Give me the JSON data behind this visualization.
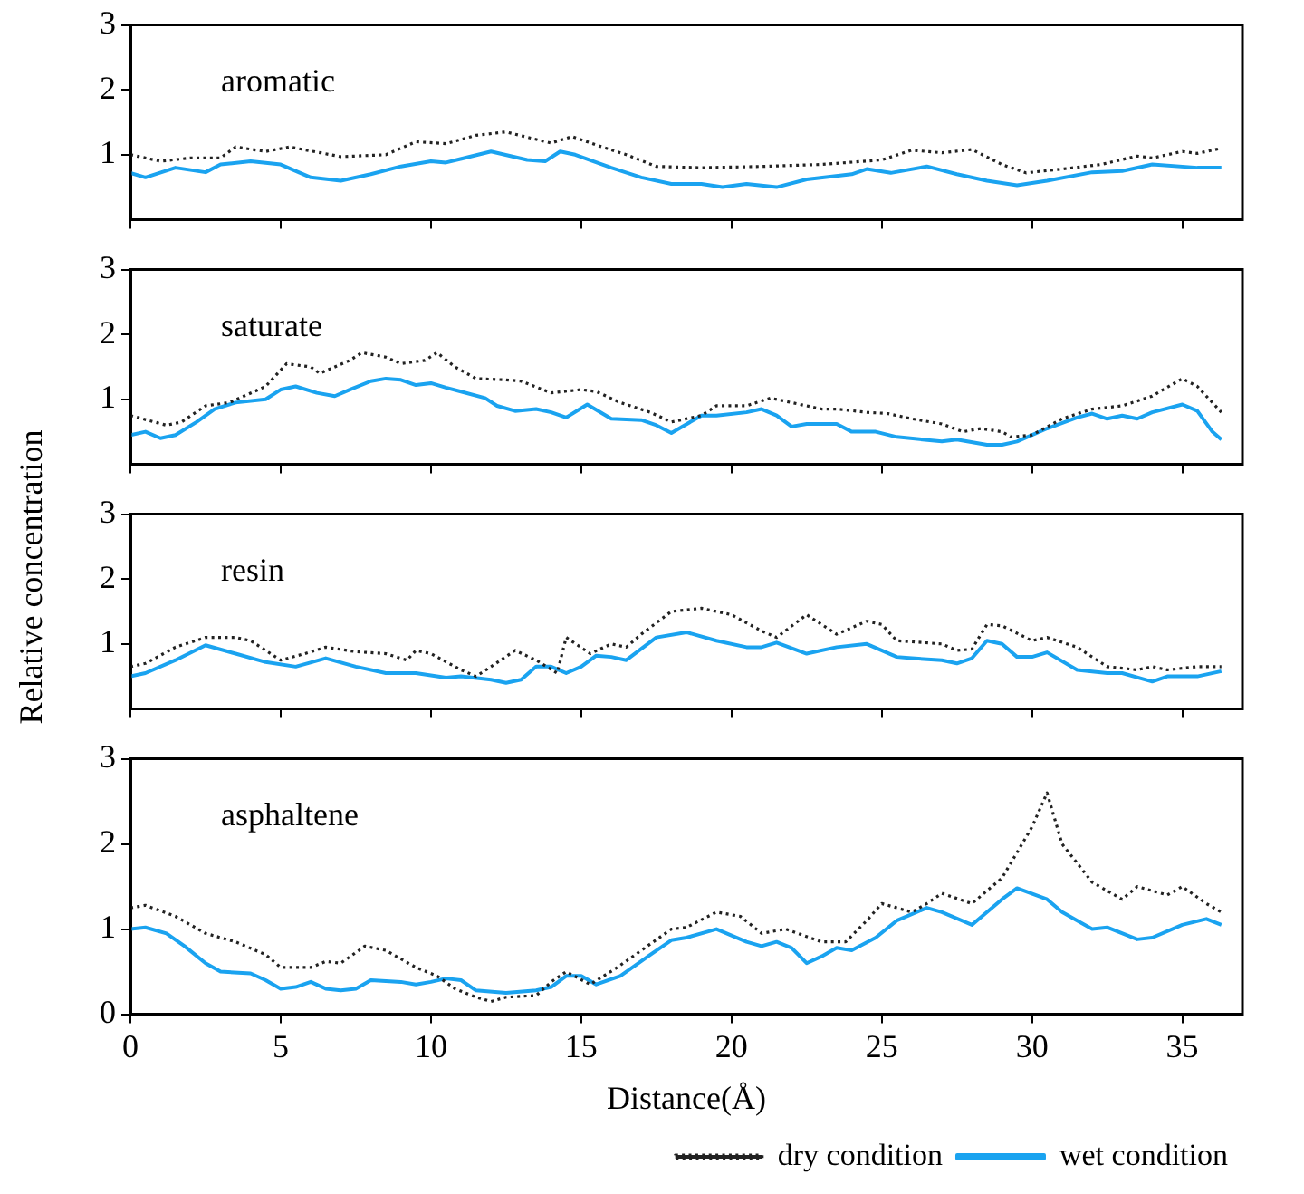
{
  "chart_data": [
    {
      "type": "line",
      "title": "aromatic",
      "xlim": [
        0,
        37
      ],
      "xticks": [
        0,
        5,
        10,
        15,
        20,
        25,
        30,
        35
      ],
      "ylim": [
        0,
        3
      ],
      "yticks": [
        1,
        2,
        3
      ],
      "tick_labels": "y",
      "legend": false,
      "marker": "none",
      "series": [
        {
          "color": "#222222",
          "line_style": "dotted",
          "x": [
            0,
            1,
            2,
            3,
            3.5,
            4.5,
            5.3,
            7,
            8.5,
            9.5,
            10.5,
            11.5,
            12.5,
            14,
            14.7,
            15.5,
            16.5,
            17.5,
            19,
            21,
            23,
            25,
            26,
            27,
            28,
            29,
            29.8,
            31,
            32.3,
            33.5,
            34,
            35,
            35.5,
            36.3
          ],
          "values": [
            1.0,
            0.9,
            0.95,
            0.95,
            1.12,
            1.05,
            1.12,
            0.97,
            1.0,
            1.2,
            1.17,
            1.3,
            1.35,
            1.18,
            1.28,
            1.15,
            1.0,
            0.82,
            0.8,
            0.82,
            0.85,
            0.92,
            1.07,
            1.03,
            1.08,
            0.85,
            0.72,
            0.78,
            0.85,
            0.98,
            0.95,
            1.05,
            1.02,
            1.1
          ]
        },
        {
          "color": "#1aa3f0",
          "line_style": "solid",
          "x": [
            0,
            0.5,
            1.5,
            2.5,
            3,
            4,
            5,
            6,
            7,
            8,
            9,
            10,
            10.5,
            12,
            13.2,
            13.8,
            14.3,
            14.8,
            16,
            17,
            18,
            19,
            19.7,
            20.5,
            21.5,
            22.5,
            24,
            24.5,
            25.3,
            26.5,
            27.5,
            28.5,
            29.5,
            30.5,
            32,
            33,
            34,
            35.5,
            36.3
          ],
          "values": [
            0.72,
            0.65,
            0.8,
            0.73,
            0.85,
            0.9,
            0.85,
            0.65,
            0.6,
            0.7,
            0.82,
            0.9,
            0.88,
            1.05,
            0.92,
            0.9,
            1.05,
            1.0,
            0.8,
            0.65,
            0.55,
            0.55,
            0.5,
            0.55,
            0.5,
            0.62,
            0.7,
            0.78,
            0.72,
            0.82,
            0.7,
            0.6,
            0.53,
            0.6,
            0.73,
            0.75,
            0.85,
            0.8,
            0.8
          ]
        }
      ]
    },
    {
      "type": "line",
      "title": "saturate",
      "xlim": [
        0,
        37
      ],
      "xticks": [
        0,
        5,
        10,
        15,
        20,
        25,
        30,
        35
      ],
      "ylim": [
        0,
        3
      ],
      "yticks": [
        1,
        2,
        3
      ],
      "tick_labels": "y",
      "legend": false,
      "marker": "none",
      "series": [
        {
          "color": "#222222",
          "line_style": "dotted",
          "x": [
            0,
            1.2,
            1.7,
            2.5,
            3.3,
            4.5,
            5.2,
            6,
            6.3,
            7.3,
            7.7,
            8.5,
            9,
            9.8,
            10.2,
            10.8,
            11.5,
            12.5,
            13,
            14,
            15,
            15.5,
            16.3,
            17.3,
            18,
            19,
            19.5,
            20.5,
            21.3,
            22,
            23,
            23.5,
            24.5,
            25.2,
            26,
            27,
            27.7,
            28.3,
            29,
            29.3,
            30,
            31,
            32,
            33,
            34,
            35,
            35.5,
            36.3
          ],
          "values": [
            0.75,
            0.6,
            0.65,
            0.9,
            0.95,
            1.2,
            1.55,
            1.5,
            1.4,
            1.6,
            1.72,
            1.65,
            1.55,
            1.6,
            1.72,
            1.5,
            1.32,
            1.3,
            1.28,
            1.1,
            1.15,
            1.12,
            0.95,
            0.8,
            0.65,
            0.75,
            0.9,
            0.9,
            1.02,
            0.95,
            0.85,
            0.85,
            0.8,
            0.78,
            0.7,
            0.62,
            0.5,
            0.55,
            0.5,
            0.42,
            0.45,
            0.7,
            0.85,
            0.9,
            1.05,
            1.32,
            1.2,
            0.8
          ]
        },
        {
          "color": "#1aa3f0",
          "line_style": "solid",
          "x": [
            0,
            0.5,
            1,
            1.5,
            2.2,
            2.8,
            3.5,
            4.5,
            5,
            5.5,
            6.2,
            6.8,
            7.3,
            8,
            8.5,
            9,
            9.5,
            10,
            10.5,
            11,
            11.8,
            12.2,
            12.8,
            13.5,
            14,
            14.5,
            15.2,
            16,
            17,
            17.5,
            18,
            19,
            19.5,
            20.5,
            21,
            21.5,
            22,
            22.5,
            23.5,
            24,
            24.8,
            25.5,
            27,
            27.5,
            28.5,
            29,
            29.5,
            30.5,
            31.5,
            32,
            32.5,
            33,
            33.5,
            34,
            35,
            35.5,
            36,
            36.3
          ],
          "values": [
            0.45,
            0.5,
            0.4,
            0.45,
            0.65,
            0.85,
            0.95,
            1.0,
            1.15,
            1.2,
            1.1,
            1.05,
            1.15,
            1.28,
            1.32,
            1.3,
            1.22,
            1.25,
            1.18,
            1.12,
            1.02,
            0.9,
            0.82,
            0.85,
            0.8,
            0.72,
            0.92,
            0.7,
            0.68,
            0.6,
            0.48,
            0.75,
            0.75,
            0.8,
            0.85,
            0.75,
            0.58,
            0.62,
            0.62,
            0.5,
            0.5,
            0.42,
            0.35,
            0.38,
            0.3,
            0.3,
            0.35,
            0.55,
            0.72,
            0.78,
            0.7,
            0.75,
            0.7,
            0.8,
            0.92,
            0.82,
            0.5,
            0.38
          ]
        }
      ]
    },
    {
      "type": "line",
      "title": "resin",
      "ylabel": "Relative concentration",
      "xlim": [
        0,
        37
      ],
      "xticks": [
        0,
        5,
        10,
        15,
        20,
        25,
        30,
        35
      ],
      "ylim": [
        0,
        3
      ],
      "yticks": [
        1,
        2,
        3
      ],
      "tick_labels": "y",
      "legend": false,
      "marker": "none",
      "series": [
        {
          "color": "#222222",
          "line_style": "dotted",
          "x": [
            0,
            0.5,
            1.5,
            2.5,
            3.5,
            4,
            5,
            5.8,
            6.5,
            7.5,
            8.5,
            9.2,
            9.5,
            10,
            11,
            11.5,
            12,
            12.8,
            13.5,
            14.2,
            14.5,
            15.3,
            16,
            16.5,
            17,
            18,
            19,
            20,
            21,
            21.5,
            22.5,
            23.5,
            24.5,
            25,
            25.5,
            27,
            27.5,
            28,
            28.5,
            29,
            30,
            30.5,
            31.5,
            32.5,
            33.5,
            34,
            34.5,
            35.5,
            36.3
          ],
          "values": [
            0.65,
            0.7,
            0.95,
            1.1,
            1.1,
            1.05,
            0.75,
            0.85,
            0.95,
            0.88,
            0.85,
            0.75,
            0.9,
            0.85,
            0.6,
            0.5,
            0.65,
            0.9,
            0.75,
            0.55,
            1.1,
            0.85,
            1.0,
            0.95,
            1.15,
            1.5,
            1.55,
            1.45,
            1.2,
            1.1,
            1.45,
            1.15,
            1.35,
            1.3,
            1.05,
            1.0,
            0.9,
            0.92,
            1.3,
            1.28,
            1.05,
            1.1,
            0.95,
            0.65,
            0.6,
            0.65,
            0.6,
            0.65,
            0.65
          ]
        },
        {
          "color": "#1aa3f0",
          "line_style": "solid",
          "x": [
            0,
            0.5,
            1.5,
            2.5,
            3.5,
            4.5,
            5.5,
            6.5,
            7.5,
            8.5,
            9.5,
            10.5,
            11,
            12,
            12.5,
            13,
            13.5,
            14,
            14.5,
            15,
            15.5,
            16,
            16.5,
            17.5,
            18.5,
            19.5,
            20.5,
            21,
            21.5,
            22.5,
            23.5,
            24.5,
            25.5,
            26,
            27,
            27.5,
            28,
            28.5,
            29,
            29.5,
            30,
            30.5,
            31.5,
            32.5,
            33,
            34,
            34.5,
            35.5,
            36.3
          ],
          "values": [
            0.5,
            0.55,
            0.75,
            0.98,
            0.85,
            0.72,
            0.65,
            0.78,
            0.65,
            0.55,
            0.55,
            0.48,
            0.5,
            0.45,
            0.4,
            0.45,
            0.65,
            0.65,
            0.55,
            0.65,
            0.82,
            0.8,
            0.75,
            1.1,
            1.18,
            1.05,
            0.95,
            0.95,
            1.02,
            0.85,
            0.95,
            1.0,
            0.8,
            0.78,
            0.75,
            0.7,
            0.78,
            1.05,
            1.0,
            0.8,
            0.8,
            0.87,
            0.6,
            0.55,
            0.55,
            0.42,
            0.5,
            0.5,
            0.58
          ]
        }
      ]
    },
    {
      "type": "line",
      "title": "asphaltene",
      "xlabel": "Distance(Å)",
      "xlim": [
        0,
        37
      ],
      "xticks": [
        0,
        5,
        10,
        15,
        20,
        25,
        30,
        35
      ],
      "ylim": [
        0,
        3
      ],
      "yticks": [
        0,
        1,
        2,
        3
      ],
      "legend": "bottom right",
      "marker": "none",
      "series": [
        {
          "name": "dry condition",
          "color": "#222222",
          "line_style": "dotted",
          "x": [
            0,
            0.5,
            1.5,
            2.5,
            3.5,
            4.5,
            5,
            6,
            6.5,
            7,
            7.8,
            8.5,
            9.5,
            10.2,
            10.8,
            11.5,
            12,
            12.5,
            13.5,
            14,
            14.5,
            15.3,
            16.2,
            16.8,
            18,
            18.5,
            19.5,
            20.3,
            21,
            21.8,
            23,
            23.8,
            24.5,
            25,
            26,
            26.5,
            27,
            28,
            29,
            30,
            30.5,
            31,
            32,
            33,
            33.5,
            34.5,
            35,
            35.8,
            36.3
          ],
          "values": [
            1.25,
            1.28,
            1.15,
            0.95,
            0.85,
            0.7,
            0.55,
            0.55,
            0.62,
            0.6,
            0.8,
            0.75,
            0.55,
            0.45,
            0.3,
            0.2,
            0.15,
            0.2,
            0.22,
            0.38,
            0.5,
            0.35,
            0.55,
            0.7,
            1.0,
            1.02,
            1.2,
            1.15,
            0.95,
            1.0,
            0.85,
            0.85,
            1.1,
            1.3,
            1.2,
            1.3,
            1.42,
            1.3,
            1.6,
            2.2,
            2.6,
            2.0,
            1.55,
            1.35,
            1.5,
            1.4,
            1.5,
            1.3,
            1.2
          ]
        },
        {
          "name": "wet condition",
          "color": "#1aa3f0",
          "line_style": "solid",
          "x": [
            0,
            0.5,
            1.2,
            1.8,
            2.5,
            3,
            4,
            4.5,
            5,
            5.5,
            6,
            6.5,
            7,
            7.5,
            8,
            9,
            9.5,
            10,
            10.5,
            11,
            11.5,
            12.5,
            13.5,
            14,
            14.5,
            15,
            15.5,
            16.3,
            17.3,
            18,
            18.5,
            19.5,
            20.5,
            21,
            21.5,
            22,
            22.5,
            23,
            23.5,
            24,
            24.8,
            25.5,
            26.5,
            27,
            28,
            29,
            29.5,
            30.5,
            31,
            32,
            32.5,
            33.5,
            34,
            35,
            35.8,
            36.3
          ],
          "values": [
            1.0,
            1.02,
            0.95,
            0.8,
            0.6,
            0.5,
            0.48,
            0.4,
            0.3,
            0.32,
            0.38,
            0.3,
            0.28,
            0.3,
            0.4,
            0.38,
            0.35,
            0.38,
            0.42,
            0.4,
            0.28,
            0.25,
            0.28,
            0.32,
            0.45,
            0.45,
            0.35,
            0.45,
            0.7,
            0.87,
            0.9,
            1.0,
            0.85,
            0.8,
            0.85,
            0.78,
            0.6,
            0.68,
            0.78,
            0.75,
            0.9,
            1.1,
            1.25,
            1.2,
            1.05,
            1.35,
            1.48,
            1.35,
            1.2,
            1.0,
            1.02,
            0.88,
            0.9,
            1.05,
            1.12,
            1.05
          ]
        }
      ]
    }
  ]
}
